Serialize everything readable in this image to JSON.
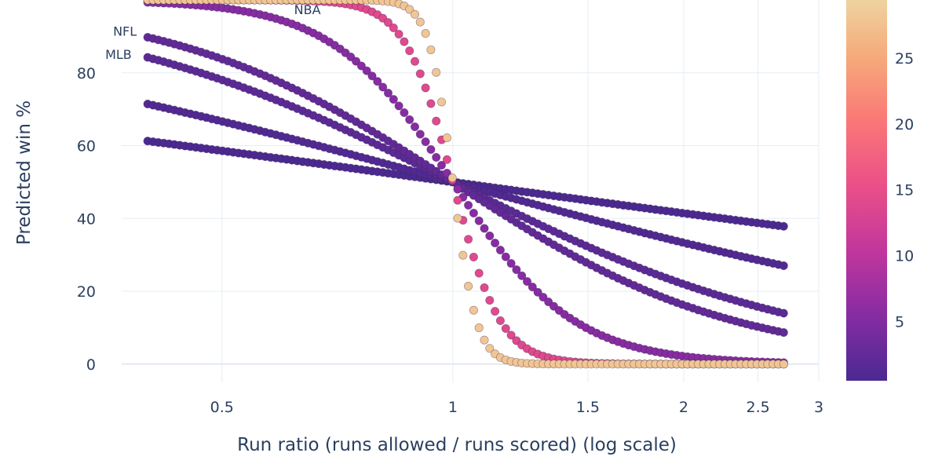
{
  "chart_data": {
    "type": "scatter",
    "title": "",
    "xlabel": "Run ratio (runs allowed / runs scored) (log scale)",
    "ylabel": "Predicted win %",
    "x_scale": "log",
    "xlim": [
      0.37,
      3.0
    ],
    "ylim": [
      -5,
      100
    ],
    "x_ticks": [
      {
        "value": 0.5,
        "label": "0.5"
      },
      {
        "value": 1,
        "label": "1"
      },
      {
        "value": 1.5,
        "label": "1.5"
      },
      {
        "value": 2,
        "label": "2"
      },
      {
        "value": 2.5,
        "label": "2.5"
      },
      {
        "value": 3,
        "label": "3"
      }
    ],
    "y_ticks": [
      {
        "value": 0,
        "label": "0"
      },
      {
        "value": 20,
        "label": "20"
      },
      {
        "value": 40,
        "label": "40"
      },
      {
        "value": 60,
        "label": "60"
      },
      {
        "value": 80,
        "label": "80"
      }
    ],
    "x_range_points": [
      0.4,
      2.7
    ],
    "points_per_series": 120,
    "series": [
      {
        "exponent": 0.5
      },
      {
        "exponent": 1.0
      },
      {
        "exponent": 1.83
      },
      {
        "exponent": 2.37
      },
      {
        "exponent": 5.5
      },
      {
        "exponent": 14.0
      },
      {
        "exponent": 28.0
      }
    ],
    "series_summary": [
      {
        "x": [
          0.4,
          1.0,
          2.7
        ],
        "y": [
          62.0,
          50.0,
          37.8
        ]
      },
      {
        "x": [
          0.4,
          1.0,
          2.7
        ],
        "y": [
          73.0,
          50.0,
          27.0
        ]
      },
      {
        "x": [
          0.4,
          1.0,
          2.7
        ],
        "y": [
          86.0,
          50.0,
          14.0
        ]
      },
      {
        "x": [
          0.4,
          1.0,
          2.7
        ],
        "y": [
          91.0,
          50.0,
          8.5
        ]
      },
      {
        "x": [
          0.4,
          1.0,
          2.7
        ],
        "y": [
          99.4,
          50.0,
          0.4
        ]
      },
      {
        "x": [
          0.4,
          1.0,
          2.7
        ],
        "y": [
          100.0,
          50.0,
          0.0
        ]
      },
      {
        "x": [
          0.4,
          1.0,
          2.7
        ],
        "y": [
          100.0,
          50.0,
          0.0
        ]
      }
    ],
    "annotations": [
      {
        "text": "NFL",
        "x": 0.4,
        "y": 91
      },
      {
        "text": "MLB",
        "x": 0.4,
        "y": 86
      },
      {
        "text": "NBA",
        "x": 0.82,
        "y": 97
      }
    ],
    "colorscale": {
      "name": "Plasma-like (Agsunset)",
      "min": 0.5,
      "max": 30,
      "ticks": [
        {
          "value": 5,
          "label": "5"
        },
        {
          "value": 10,
          "label": "10"
        },
        {
          "value": 15,
          "label": "15"
        },
        {
          "value": 20,
          "label": "20"
        },
        {
          "value": 25,
          "label": "25"
        }
      ],
      "stops": [
        {
          "t": 0.0,
          "color": "#4b2991"
        },
        {
          "t": 0.17,
          "color": "#872ca2"
        },
        {
          "t": 0.33,
          "color": "#c0369d"
        },
        {
          "t": 0.5,
          "color": "#ea4f88"
        },
        {
          "t": 0.67,
          "color": "#fa7876"
        },
        {
          "t": 0.83,
          "color": "#f6a97a"
        },
        {
          "t": 1.0,
          "color": "#edd9a3"
        }
      ]
    },
    "grid": true,
    "legend": "colorbar-right"
  }
}
